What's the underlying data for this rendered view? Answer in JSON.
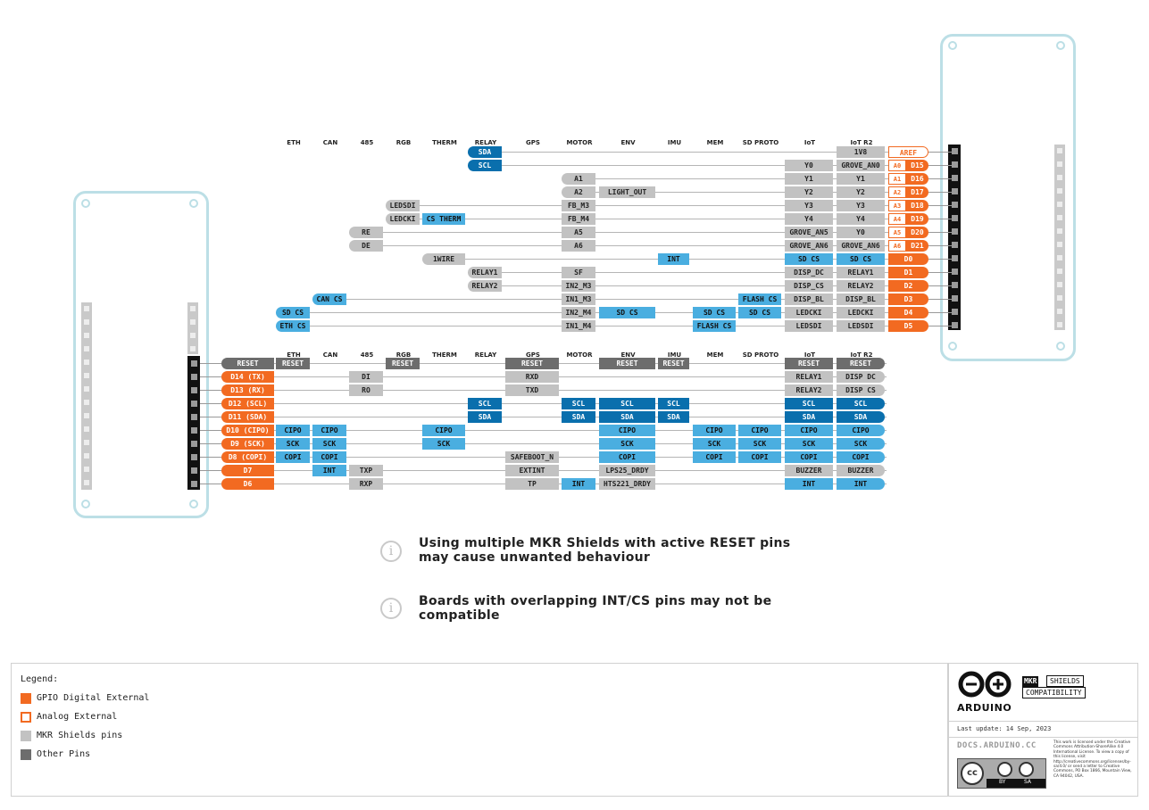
{
  "headers": [
    "ETH",
    "CAN",
    "485",
    "RGB",
    "THERM",
    "RELAY",
    "GPS",
    "MOTOR",
    "ENV",
    "IMU",
    "MEM",
    "SD PROTO",
    "IoT",
    "IoT R2"
  ],
  "top_rows": [
    {
      "cells": [
        [
          5,
          "SDA",
          "db"
        ]
      ],
      "pin": [
        "AREF",
        "ao"
      ],
      "a": ""
    },
    {
      "cells": [
        [
          5,
          "SCL",
          "db"
        ],
        [
          12,
          "Y0",
          "g"
        ],
        [
          13,
          "GROVE_AN0",
          "g"
        ]
      ],
      "pin": [
        "D15",
        "or"
      ],
      "a": "A0"
    },
    {
      "cells": [
        [
          7,
          "A1",
          "g"
        ],
        [
          12,
          "Y1",
          "g"
        ],
        [
          13,
          "Y1",
          "g"
        ]
      ],
      "pin": [
        "D16",
        "or"
      ],
      "a": "A1"
    },
    {
      "cells": [
        [
          7,
          "A2",
          "g"
        ],
        [
          8,
          "LIGHT_OUT",
          "g"
        ],
        [
          12,
          "Y2",
          "g"
        ],
        [
          13,
          "Y2",
          "g"
        ]
      ],
      "pin": [
        "D17",
        "or"
      ],
      "a": "A2"
    },
    {
      "cells": [
        [
          3,
          "LEDSDI",
          "g"
        ],
        [
          7,
          "FB_M3",
          "g"
        ],
        [
          12,
          "Y3",
          "g"
        ],
        [
          13,
          "Y3",
          "g"
        ]
      ],
      "pin": [
        "D18",
        "or"
      ],
      "a": "A3"
    },
    {
      "cells": [
        [
          3,
          "LEDCKI",
          "g"
        ],
        [
          4,
          "CS THERM",
          "lb"
        ],
        [
          7,
          "FB_M4",
          "g"
        ],
        [
          12,
          "Y4",
          "g"
        ],
        [
          13,
          "Y4",
          "g"
        ]
      ],
      "pin": [
        "D19",
        "or"
      ],
      "a": "A4"
    },
    {
      "cells": [
        [
          2,
          "RE",
          "g"
        ],
        [
          7,
          "A5",
          "g"
        ],
        [
          12,
          "GROVE_AN5",
          "g"
        ],
        [
          13,
          "Y0",
          "g"
        ]
      ],
      "pin": [
        "D20",
        "or"
      ],
      "a": "A5"
    },
    {
      "cells": [
        [
          2,
          "DE",
          "g"
        ],
        [
          7,
          "A6",
          "g"
        ],
        [
          12,
          "GROVE_AN6",
          "g"
        ],
        [
          13,
          "GROVE_AN6",
          "g"
        ]
      ],
      "pin": [
        "D21",
        "or"
      ],
      "a": "A6"
    },
    {
      "cells": [
        [
          4,
          "1WIRE",
          "g"
        ],
        [
          9,
          "INT",
          "lb"
        ],
        [
          12,
          "SD CS",
          "lb"
        ],
        [
          13,
          "SD CS",
          "lb"
        ]
      ],
      "pin": [
        "D0",
        "or"
      ],
      "a": ""
    },
    {
      "cells": [
        [
          5,
          "RELAY1",
          "g"
        ],
        [
          7,
          "SF",
          "g"
        ],
        [
          12,
          "DISP_DC",
          "g"
        ],
        [
          13,
          "RELAY1",
          "g"
        ]
      ],
      "pin": [
        "D1",
        "or"
      ],
      "a": ""
    },
    {
      "cells": [
        [
          5,
          "RELAY2",
          "g"
        ],
        [
          7,
          "IN2_M3",
          "g"
        ],
        [
          12,
          "DISP_CS",
          "g"
        ],
        [
          13,
          "RELAY2",
          "g"
        ]
      ],
      "pin": [
        "D2",
        "or"
      ],
      "a": ""
    },
    {
      "cells": [
        [
          1,
          "CAN CS",
          "lb"
        ],
        [
          7,
          "IN1_M3",
          "g"
        ],
        [
          11,
          "FLASH CS",
          "lb"
        ],
        [
          12,
          "DISP_BL",
          "g"
        ],
        [
          13,
          "DISP_BL",
          "g"
        ]
      ],
      "pin": [
        "D3",
        "or"
      ],
      "a": ""
    },
    {
      "cells": [
        [
          0,
          "SD CS",
          "lb"
        ],
        [
          7,
          "IN2_M4",
          "g"
        ],
        [
          8,
          "SD CS",
          "lb"
        ],
        [
          10,
          "SD CS",
          "lb"
        ],
        [
          11,
          "SD CS",
          "lb"
        ],
        [
          12,
          "LEDCKI",
          "g"
        ],
        [
          13,
          "LEDCKI",
          "g"
        ]
      ],
      "pin": [
        "D4",
        "or"
      ],
      "a": ""
    },
    {
      "cells": [
        [
          0,
          "ETH CS",
          "lb"
        ],
        [
          7,
          "IN1_M4",
          "g"
        ],
        [
          10,
          "FLASH CS",
          "lb"
        ],
        [
          12,
          "LEDSDI",
          "g"
        ],
        [
          13,
          "LEDSDI",
          "g"
        ]
      ],
      "pin": [
        "D5",
        "or"
      ],
      "a": ""
    }
  ],
  "top_extra": {
    "iot_r2_first": "1V8"
  },
  "bottom_rows": [
    {
      "pin": "RESET",
      "pinc": "dg",
      "cells": [
        [
          0,
          "RESET",
          "dg"
        ],
        [
          3,
          "RESET",
          "dg"
        ],
        [
          6,
          "RESET",
          "dg"
        ],
        [
          8,
          "RESET",
          "dg"
        ],
        [
          9,
          "RESET",
          "dg"
        ],
        [
          12,
          "RESET",
          "dg"
        ],
        [
          13,
          "RESET",
          "dg"
        ]
      ]
    },
    {
      "pin": "D14 (TX)",
      "pinc": "or",
      "cells": [
        [
          2,
          "DI",
          "g"
        ],
        [
          6,
          "RXD",
          "g"
        ],
        [
          12,
          "RELAY1",
          "g"
        ],
        [
          13,
          "DISP DC",
          "g"
        ]
      ]
    },
    {
      "pin": "D13 (RX)",
      "pinc": "or",
      "cells": [
        [
          2,
          "RO",
          "g"
        ],
        [
          6,
          "TXD",
          "g"
        ],
        [
          12,
          "RELAY2",
          "g"
        ],
        [
          13,
          "DISP CS",
          "g"
        ]
      ]
    },
    {
      "pin": "D12 (SCL)",
      "pinc": "or",
      "cells": [
        [
          5,
          "SCL",
          "db"
        ],
        [
          7,
          "SCL",
          "db"
        ],
        [
          8,
          "SCL",
          "db"
        ],
        [
          9,
          "SCL",
          "db"
        ],
        [
          12,
          "SCL",
          "db"
        ],
        [
          13,
          "SCL",
          "db"
        ]
      ]
    },
    {
      "pin": "D11 (SDA)",
      "pinc": "or",
      "cells": [
        [
          5,
          "SDA",
          "db"
        ],
        [
          7,
          "SDA",
          "db"
        ],
        [
          8,
          "SDA",
          "db"
        ],
        [
          9,
          "SDA",
          "db"
        ],
        [
          12,
          "SDA",
          "db"
        ],
        [
          13,
          "SDA",
          "db"
        ]
      ]
    },
    {
      "pin": "D10 (CIPO)",
      "pinc": "or",
      "cells": [
        [
          0,
          "CIPO",
          "lb"
        ],
        [
          1,
          "CIPO",
          "lb"
        ],
        [
          4,
          "CIPO",
          "lb"
        ],
        [
          8,
          "CIPO",
          "lb"
        ],
        [
          10,
          "CIPO",
          "lb"
        ],
        [
          11,
          "CIPO",
          "lb"
        ],
        [
          12,
          "CIPO",
          "lb"
        ],
        [
          13,
          "CIPO",
          "lb"
        ]
      ]
    },
    {
      "pin": "D9 (SCK)",
      "pinc": "or",
      "cells": [
        [
          0,
          "SCK",
          "lb"
        ],
        [
          1,
          "SCK",
          "lb"
        ],
        [
          4,
          "SCK",
          "lb"
        ],
        [
          8,
          "SCK",
          "lb"
        ],
        [
          10,
          "SCK",
          "lb"
        ],
        [
          11,
          "SCK",
          "lb"
        ],
        [
          12,
          "SCK",
          "lb"
        ],
        [
          13,
          "SCK",
          "lb"
        ]
      ]
    },
    {
      "pin": "D8 (COPI)",
      "pinc": "or",
      "cells": [
        [
          0,
          "COPI",
          "lb"
        ],
        [
          1,
          "COPI",
          "lb"
        ],
        [
          6,
          "SAFEBOOT_N",
          "g"
        ],
        [
          8,
          "COPI",
          "lb"
        ],
        [
          10,
          "COPI",
          "lb"
        ],
        [
          11,
          "COPI",
          "lb"
        ],
        [
          12,
          "COPI",
          "lb"
        ],
        [
          13,
          "COPI",
          "lb"
        ]
      ]
    },
    {
      "pin": "D7",
      "pinc": "or",
      "cells": [
        [
          1,
          "INT",
          "lb"
        ],
        [
          2,
          "TXP",
          "g"
        ],
        [
          6,
          "EXTINT",
          "g"
        ],
        [
          8,
          "LPS25_DRDY",
          "g"
        ],
        [
          12,
          "BUZZER",
          "g"
        ],
        [
          13,
          "BUZZER",
          "g"
        ]
      ]
    },
    {
      "pin": "D6",
      "pinc": "or",
      "cells": [
        [
          2,
          "RXP",
          "g"
        ],
        [
          6,
          "TP",
          "g"
        ],
        [
          7,
          "INT",
          "lb"
        ],
        [
          8,
          "HTS221_DRDY",
          "g"
        ],
        [
          12,
          "INT",
          "lb"
        ],
        [
          13,
          "INT",
          "lb"
        ]
      ]
    }
  ],
  "notes": [
    "Using multiple MKR Shields with active RESET pins may cause unwanted behaviour",
    "Boards with overlapping INT/CS pins may not be compatible"
  ],
  "legend": {
    "title": "Legend:",
    "items": [
      {
        "label": "GPIO Digital External",
        "color": "#f26a21",
        "style": "fill"
      },
      {
        "label": "Analog External",
        "color": "#f26a21",
        "style": "outline"
      },
      {
        "label": "MKR Shields pins",
        "color": "#c2c2c2",
        "style": "fill"
      },
      {
        "label": "Other Pins",
        "color": "#6d6d6d",
        "style": "fill"
      }
    ]
  },
  "branding": {
    "logo_text": "ARDUINO",
    "tag1a": "MKR",
    "tag1b": "SHIELDS",
    "tag2": "COMPATIBILITY",
    "last_update": "Last update: 14 Sep, 2023",
    "site": "DOCS.ARDUINO.CC",
    "license": "This work is licensed under the Creative Commons Attribution-ShareAlike 4.0 International License. To view a copy of this license, visit http://creativecommons.org/licenses/by-sa/4.0/ or send a letter to Creative Commons, PO Box 1866, Mountain View, CA 94042, USA.",
    "cc_by": "BY",
    "cc_sa": "SA",
    "cc": "cc"
  }
}
